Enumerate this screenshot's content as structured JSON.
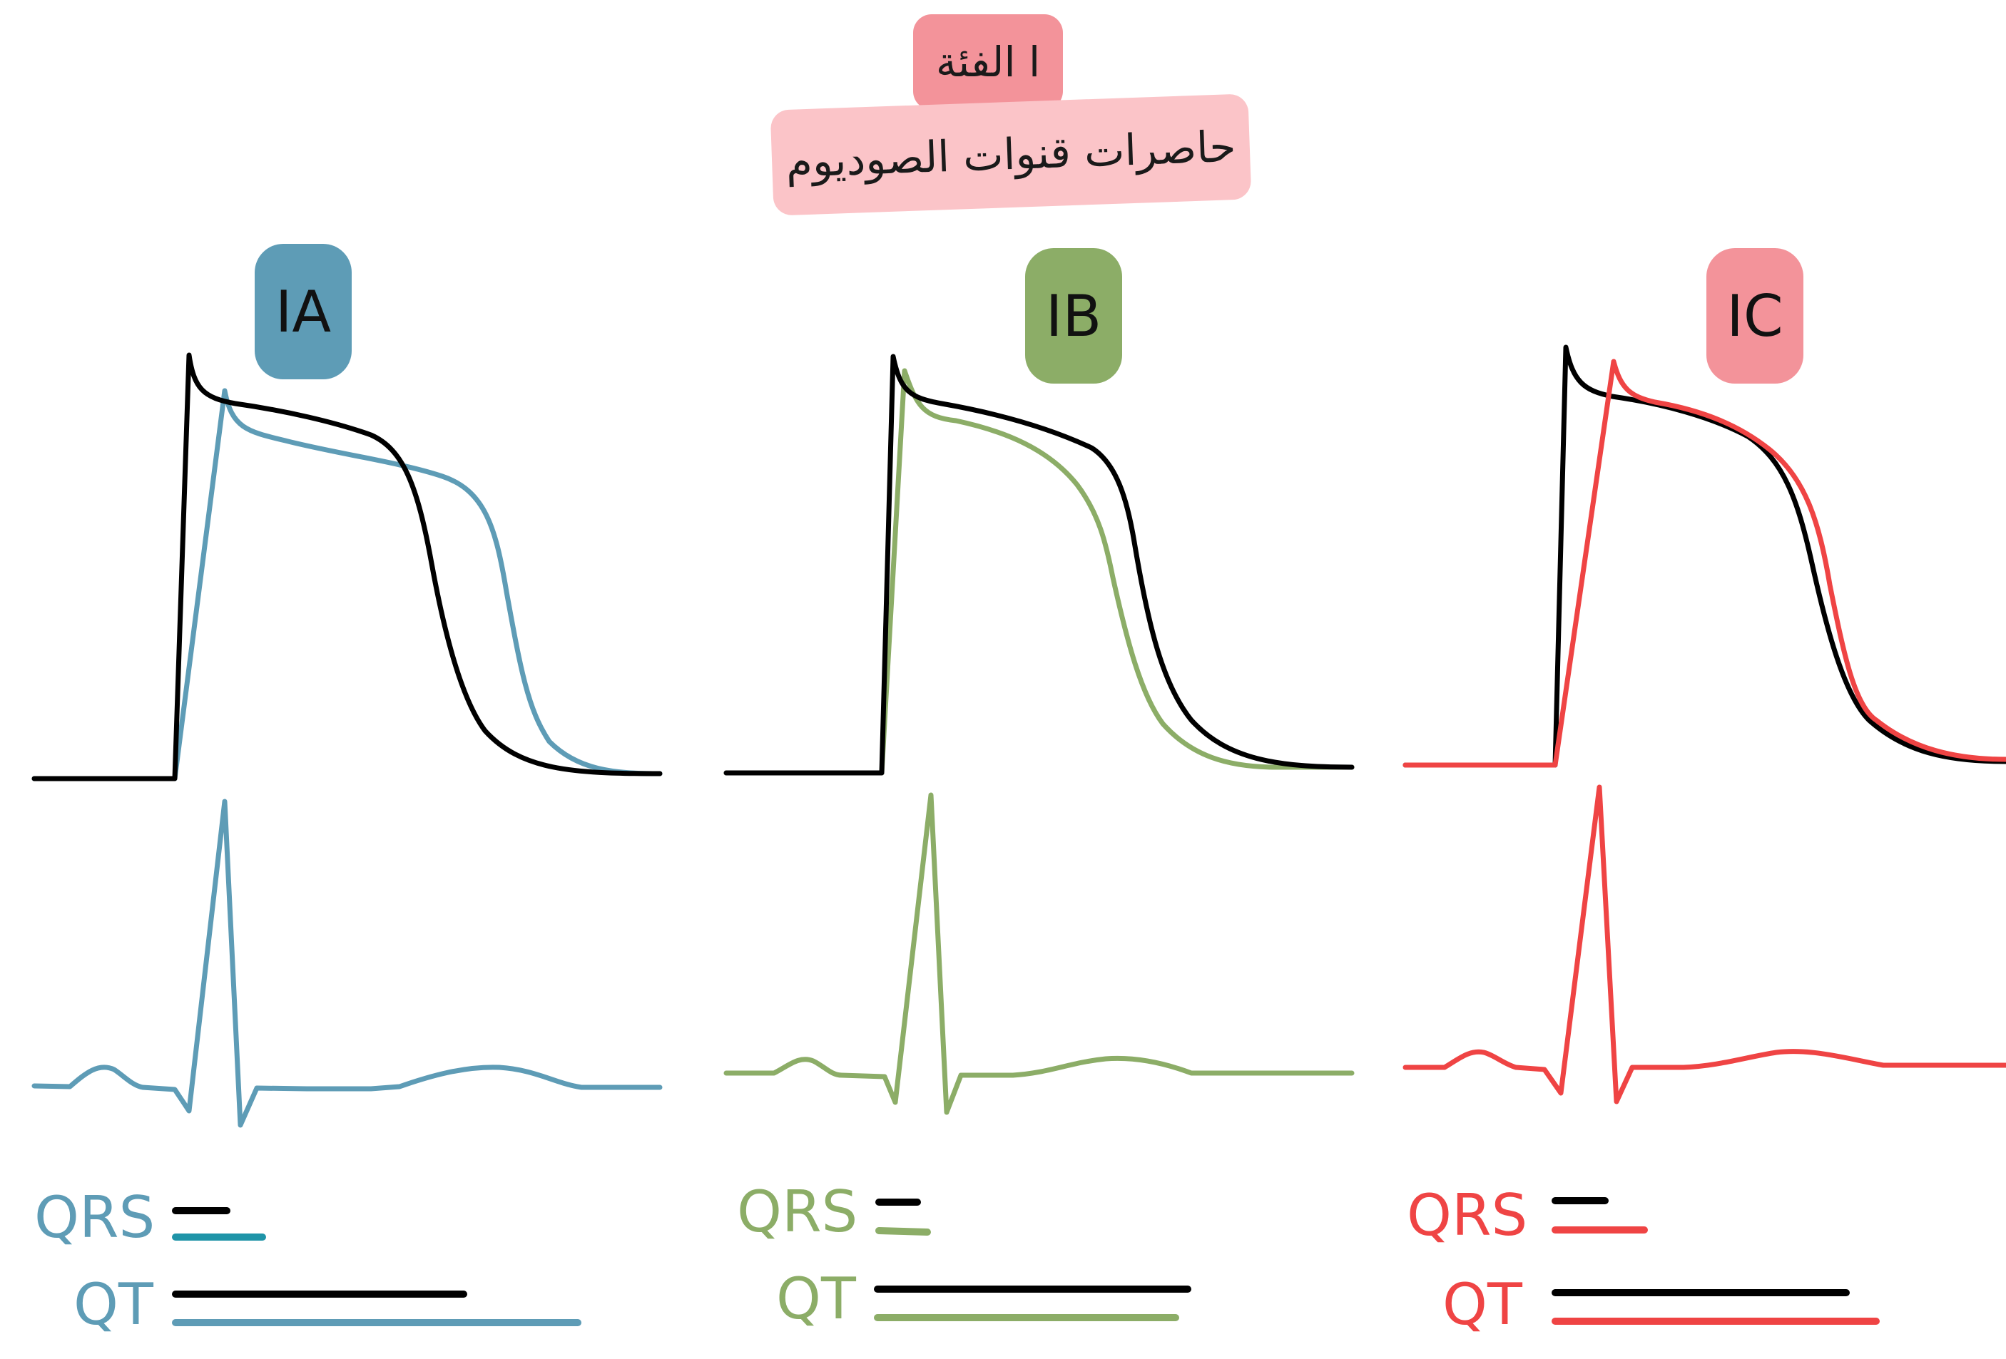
{
  "header": {
    "class_label": "ا الفئة",
    "subtitle": "حاصرات قنوات الصوديوم"
  },
  "panels": [
    {
      "id": "ia",
      "label": "IA",
      "color": "#5e9cb6",
      "bar_color": "#1f94a8",
      "qrs_label": "QRS",
      "qt_label": "QT"
    },
    {
      "id": "ib",
      "label": "IB",
      "color": "#8cad67",
      "bar_color": "#8cad67",
      "qrs_label": "QRS",
      "qt_label": "QT"
    },
    {
      "id": "ic",
      "label": "IC",
      "color": "#ef4444",
      "bar_color": "#ef4444",
      "qrs_label": "QRS",
      "qt_label": "QT"
    }
  ],
  "colors": {
    "baseline": "#000000"
  }
}
